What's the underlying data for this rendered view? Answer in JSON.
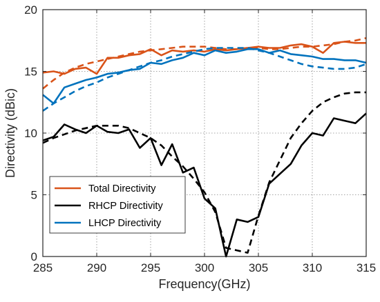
{
  "chart_data": {
    "type": "line",
    "xlabel": "Frequency(GHz)",
    "ylabel": "Directivity (dBic)",
    "xlim": [
      285,
      315
    ],
    "ylim": [
      0,
      20
    ],
    "xticks": [
      285,
      290,
      295,
      300,
      305,
      310,
      315
    ],
    "yticks": [
      0,
      5,
      10,
      15,
      20
    ],
    "grid": true,
    "legend_position": "bottom-left",
    "series": [
      {
        "name": "Total Directivity",
        "color": "#d95319",
        "style": "solid",
        "x": [
          285,
          286,
          287,
          288,
          289,
          290,
          291,
          292,
          293,
          294,
          295,
          296,
          297,
          298,
          299,
          300,
          301,
          302,
          303,
          304,
          305,
          306,
          307,
          308,
          309,
          310,
          311,
          312,
          313,
          314,
          315
        ],
        "values": [
          14.9,
          15.0,
          14.8,
          15.2,
          15.3,
          14.8,
          16.1,
          16.1,
          16.3,
          16.4,
          16.8,
          16.3,
          16.7,
          16.6,
          16.7,
          16.6,
          16.8,
          16.7,
          16.8,
          16.9,
          17.0,
          16.9,
          16.9,
          17.1,
          17.2,
          17.0,
          16.5,
          17.3,
          17.4,
          17.3,
          17.3
        ]
      },
      {
        "name": "",
        "color": "#d95319",
        "style": "dashed",
        "x": [
          285,
          286,
          287,
          288,
          289,
          290,
          291,
          292,
          293,
          294,
          295,
          296,
          297,
          298,
          299,
          300,
          301,
          302,
          303,
          304,
          305,
          306,
          307,
          308,
          309,
          310,
          311,
          312,
          313,
          314,
          315
        ],
        "values": [
          13.6,
          14.3,
          14.9,
          15.3,
          15.6,
          15.8,
          16.0,
          16.2,
          16.4,
          16.6,
          16.7,
          16.8,
          16.9,
          17.0,
          17.0,
          17.0,
          16.9,
          16.8,
          16.8,
          16.9,
          16.9,
          16.8,
          16.8,
          16.9,
          17.0,
          17.0,
          17.1,
          17.2,
          17.4,
          17.5,
          17.7
        ]
      },
      {
        "name": "RHCP Directivity",
        "color": "#000000",
        "style": "solid",
        "x": [
          285,
          286,
          287,
          288,
          289,
          290,
          291,
          292,
          293,
          294,
          295,
          296,
          297,
          298,
          299,
          300,
          301,
          302,
          303,
          304,
          305,
          306,
          307,
          308,
          309,
          310,
          311,
          312,
          313,
          314,
          315
        ],
        "values": [
          9.4,
          9.7,
          10.7,
          10.3,
          10.0,
          10.6,
          10.1,
          10.0,
          10.3,
          8.8,
          9.6,
          7.4,
          9.1,
          6.8,
          7.2,
          4.7,
          3.9,
          0.0,
          3.0,
          2.8,
          3.2,
          5.9,
          6.7,
          7.5,
          9.0,
          10.0,
          9.8,
          11.2,
          11.0,
          10.8,
          11.6
        ]
      },
      {
        "name": "",
        "color": "#000000",
        "style": "dashed",
        "x": [
          285,
          286,
          287,
          288,
          289,
          290,
          291,
          292,
          293,
          294,
          295,
          296,
          297,
          298,
          299,
          300,
          301,
          302,
          303,
          304,
          305,
          306,
          307,
          308,
          309,
          310,
          311,
          312,
          313,
          314,
          315
        ],
        "values": [
          9.2,
          9.6,
          9.9,
          10.2,
          10.4,
          10.6,
          10.6,
          10.6,
          10.4,
          10.0,
          9.6,
          9.0,
          8.1,
          7.3,
          6.3,
          5.2,
          3.6,
          0.7,
          0.5,
          0.3,
          3.3,
          6.0,
          7.8,
          9.6,
          10.8,
          11.8,
          12.5,
          12.9,
          13.2,
          13.3,
          13.3
        ]
      },
      {
        "name": "LHCP Directivity",
        "color": "#0072bd",
        "style": "solid",
        "x": [
          285,
          286,
          287,
          288,
          289,
          290,
          291,
          292,
          293,
          294,
          295,
          296,
          297,
          298,
          299,
          300,
          301,
          302,
          303,
          304,
          305,
          306,
          307,
          308,
          309,
          310,
          311,
          312,
          313,
          314,
          315
        ],
        "values": [
          13.1,
          12.4,
          13.7,
          14.0,
          14.3,
          14.5,
          14.8,
          14.9,
          15.1,
          15.2,
          15.7,
          15.6,
          15.9,
          16.1,
          16.5,
          16.3,
          16.7,
          16.5,
          16.6,
          16.8,
          16.8,
          16.5,
          16.7,
          16.4,
          16.3,
          16.2,
          16.0,
          16.0,
          15.9,
          15.9,
          15.7
        ]
      },
      {
        "name": "",
        "color": "#0072bd",
        "style": "dashed",
        "x": [
          285,
          286,
          287,
          288,
          289,
          290,
          291,
          292,
          293,
          294,
          295,
          296,
          297,
          298,
          299,
          300,
          301,
          302,
          303,
          304,
          305,
          306,
          307,
          308,
          309,
          310,
          311,
          312,
          313,
          314,
          315
        ],
        "values": [
          11.8,
          12.4,
          12.9,
          13.4,
          13.8,
          14.1,
          14.5,
          14.8,
          15.1,
          15.4,
          15.7,
          15.9,
          16.2,
          16.4,
          16.6,
          16.8,
          16.9,
          16.9,
          16.9,
          16.9,
          16.7,
          16.5,
          16.2,
          15.9,
          15.6,
          15.4,
          15.3,
          15.2,
          15.2,
          15.3,
          15.6
        ]
      }
    ]
  }
}
